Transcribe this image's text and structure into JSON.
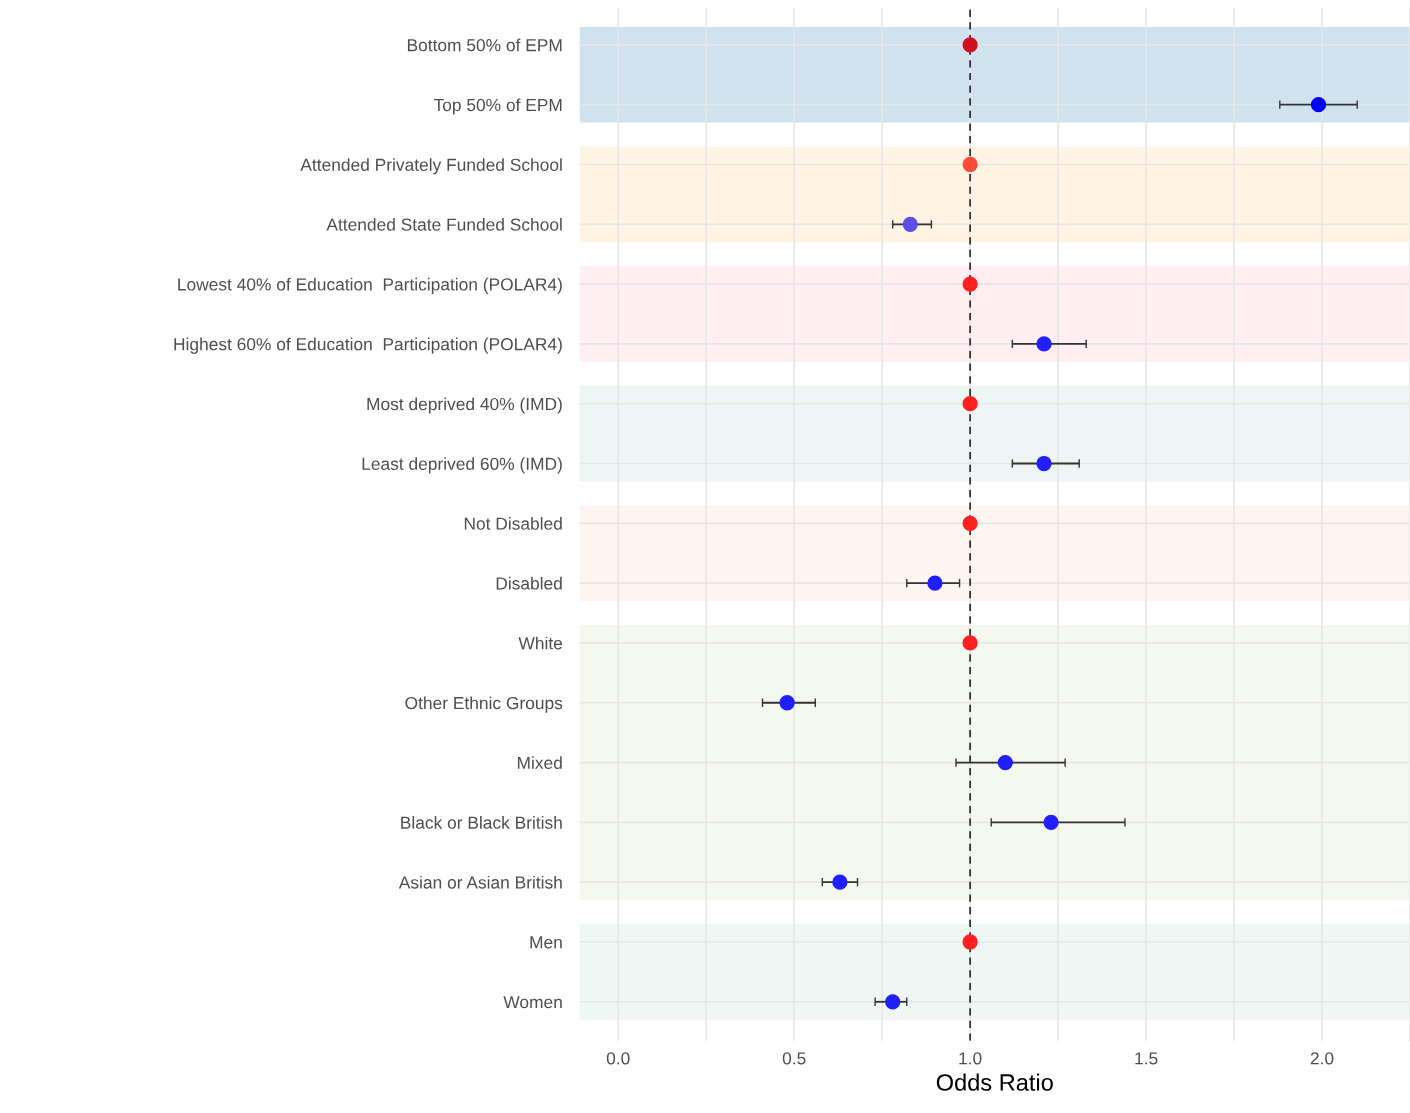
{
  "chart_data": {
    "type": "scatter",
    "orientation": "horizontal",
    "xlabel": "Odds Ratio",
    "categories": [
      "Bottom 50% of EPM",
      "Top 50% of EPM",
      "Attended Privately Funded School",
      "Attended State Funded School",
      "Lowest 40% of Education  Participation (POLAR4)",
      "Highest 60% of Education  Participation (POLAR4)",
      "Most deprived 40% (IMD)",
      "Least deprived 60% (IMD)",
      "Not Disabled",
      "Disabled",
      "White",
      "Other Ethnic Groups",
      "Mixed",
      "Black or Black British",
      "Asian or Asian British",
      "Men",
      "Women"
    ],
    "values": [
      1.0,
      1.99,
      1.0,
      0.83,
      1.0,
      1.21,
      1.0,
      1.21,
      1.0,
      0.9,
      1.0,
      0.48,
      1.1,
      1.23,
      0.63,
      1.0,
      0.78
    ],
    "errors": [
      null,
      [
        1.88,
        2.1
      ],
      null,
      [
        0.78,
        0.89
      ],
      null,
      [
        1.12,
        1.33
      ],
      null,
      [
        1.12,
        1.31
      ],
      null,
      [
        0.82,
        0.97
      ],
      null,
      [
        0.41,
        0.56
      ],
      [
        0.96,
        1.27
      ],
      [
        1.06,
        1.44
      ],
      [
        0.58,
        0.68
      ],
      null,
      [
        0.73,
        0.82
      ]
    ],
    "colors": [
      "#d01020",
      "#0000ff",
      "#ff4a3a",
      "#5a50e8",
      "#ff2020",
      "#2020ff",
      "#ff2020",
      "#2020ff",
      "#ff2020",
      "#2020ff",
      "#ff2020",
      "#2020ff",
      "#2020ff",
      "#2020ff",
      "#2020ff",
      "#ff2020",
      "#2020ff"
    ],
    "xlim": [
      -0.11,
      2.25
    ],
    "xticks": [
      {
        "value": 0,
        "label": "0.0"
      },
      {
        "value": 0.25,
        "label": null
      },
      0.5,
      {
        "value": 0.75,
        "label": null
      },
      {
        "value": 1,
        "label": "1.0"
      },
      {
        "value": 1.25,
        "label": null
      },
      1.5,
      {
        "value": 1.75,
        "label": null
      },
      {
        "value": 2,
        "label": "2.0"
      },
      {
        "value": 2.25,
        "label": null
      }
    ],
    "ref_lines": [
      {
        "axis": "x",
        "value": 1.0,
        "color": "#333333",
        "line_style": "dashed"
      }
    ],
    "bands": [
      {
        "axis": "y",
        "from": "Bottom 50% of EPM",
        "to": "Top 50% of EPM",
        "color": "#d1e2ef"
      },
      {
        "axis": "y",
        "from": "Attended Privately Funded School",
        "to": "Attended State Funded School",
        "color": "#fff4e3"
      },
      {
        "axis": "y",
        "from": "Lowest 40% of Education  Participation (POLAR4)",
        "to": "Highest 60% of Education  Participation (POLAR4)",
        "color": "#ffeef2"
      },
      {
        "axis": "y",
        "from": "Most deprived 40% (IMD)",
        "to": "Least deprived 60% (IMD)",
        "color": "#eef6f5"
      },
      {
        "axis": "y",
        "from": "Not Disabled",
        "to": "Disabled",
        "color": "#fff5f0"
      },
      {
        "axis": "y",
        "from": "White",
        "to": "Asian or Asian British",
        "color": "#f5f8ef"
      },
      {
        "axis": "y",
        "from": "Men",
        "to": "Women",
        "color": "#eff7f5"
      }
    ],
    "grid": true,
    "legend": false,
    "marker": "circle"
  }
}
